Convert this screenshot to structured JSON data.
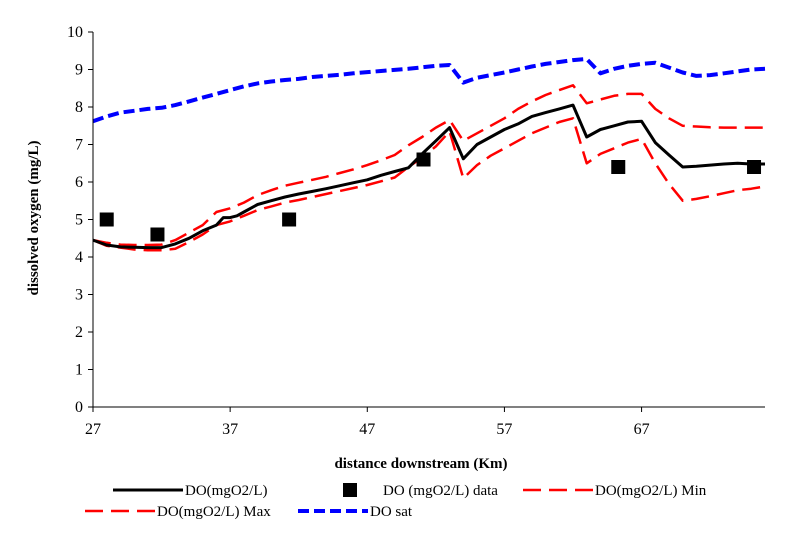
{
  "chart_data": {
    "type": "line",
    "title": "",
    "xlabel": "distance downstream (Km)",
    "ylabel": "dissolved oxygen (mg/L)",
    "xlim": [
      27,
      76
    ],
    "ylim": [
      0,
      10
    ],
    "x_ticks": [
      "27",
      "37",
      "47",
      "57",
      "67"
    ],
    "y_ticks": [
      "0",
      "1",
      "2",
      "3",
      "4",
      "5",
      "6",
      "7",
      "8",
      "9",
      "10"
    ],
    "grid": false,
    "legend_position": "bottom",
    "series": [
      {
        "name": "DO(mgO2/L)",
        "kind": "line",
        "style": "solid",
        "color": "#000000",
        "points": [
          [
            27,
            4.45
          ],
          [
            28,
            4.32
          ],
          [
            29,
            4.27
          ],
          [
            30,
            4.26
          ],
          [
            31,
            4.25
          ],
          [
            32,
            4.25
          ],
          [
            33,
            4.35
          ],
          [
            34,
            4.5
          ],
          [
            35,
            4.7
          ],
          [
            36,
            4.85
          ],
          [
            36.5,
            5.05
          ],
          [
            37,
            5.05
          ],
          [
            37.5,
            5.1
          ],
          [
            38,
            5.2
          ],
          [
            39,
            5.4
          ],
          [
            40,
            5.5
          ],
          [
            41,
            5.6
          ],
          [
            42,
            5.68
          ],
          [
            43,
            5.75
          ],
          [
            44,
            5.82
          ],
          [
            45,
            5.9
          ],
          [
            46,
            5.98
          ],
          [
            47,
            6.06
          ],
          [
            48,
            6.18
          ],
          [
            49,
            6.28
          ],
          [
            50,
            6.38
          ],
          [
            51,
            6.75
          ],
          [
            52,
            7.1
          ],
          [
            53,
            7.45
          ],
          [
            54,
            6.62
          ],
          [
            55,
            7.0
          ],
          [
            56,
            7.2
          ],
          [
            57,
            7.4
          ],
          [
            58,
            7.55
          ],
          [
            59,
            7.75
          ],
          [
            60,
            7.85
          ],
          [
            61,
            7.95
          ],
          [
            62,
            8.05
          ],
          [
            63,
            7.2
          ],
          [
            64,
            7.4
          ],
          [
            65,
            7.5
          ],
          [
            66,
            7.6
          ],
          [
            67,
            7.62
          ],
          [
            68,
            7.05
          ],
          [
            69,
            6.72
          ],
          [
            70,
            6.4
          ],
          [
            71,
            6.42
          ],
          [
            72,
            6.45
          ],
          [
            73,
            6.48
          ],
          [
            74,
            6.5
          ],
          [
            75,
            6.48
          ],
          [
            76,
            6.48
          ]
        ]
      },
      {
        "name": "DO (mgO2/L) data",
        "kind": "markers",
        "color": "#000000",
        "points": [
          [
            28,
            5.0
          ],
          [
            31.7,
            4.6
          ],
          [
            41.3,
            5.0
          ],
          [
            51.1,
            6.6
          ],
          [
            65.3,
            6.4
          ],
          [
            75.2,
            6.4
          ]
        ]
      },
      {
        "name": "DO(mgO2/L) Min",
        "kind": "line",
        "style": "dashed",
        "color": "#ff0000",
        "points": [
          [
            27,
            4.45
          ],
          [
            28,
            4.3
          ],
          [
            29,
            4.25
          ],
          [
            30,
            4.2
          ],
          [
            31,
            4.18
          ],
          [
            32,
            4.18
          ],
          [
            33,
            4.22
          ],
          [
            34,
            4.4
          ],
          [
            35,
            4.6
          ],
          [
            36,
            4.85
          ],
          [
            37,
            4.95
          ],
          [
            38,
            5.1
          ],
          [
            39,
            5.25
          ],
          [
            40,
            5.35
          ],
          [
            41,
            5.45
          ],
          [
            42,
            5.52
          ],
          [
            43,
            5.6
          ],
          [
            44,
            5.68
          ],
          [
            45,
            5.76
          ],
          [
            46,
            5.84
          ],
          [
            47,
            5.92
          ],
          [
            48,
            6.02
          ],
          [
            49,
            6.12
          ],
          [
            50,
            6.4
          ],
          [
            51,
            6.65
          ],
          [
            52,
            6.95
          ],
          [
            53,
            7.35
          ],
          [
            54,
            6.1
          ],
          [
            55,
            6.45
          ],
          [
            56,
            6.7
          ],
          [
            57,
            6.9
          ],
          [
            58,
            7.1
          ],
          [
            59,
            7.3
          ],
          [
            60,
            7.45
          ],
          [
            61,
            7.6
          ],
          [
            62,
            7.7
          ],
          [
            63,
            6.5
          ],
          [
            64,
            6.75
          ],
          [
            65,
            6.9
          ],
          [
            66,
            7.05
          ],
          [
            67,
            7.15
          ],
          [
            68,
            6.5
          ],
          [
            69,
            5.95
          ],
          [
            70,
            5.5
          ],
          [
            71,
            5.55
          ],
          [
            72,
            5.62
          ],
          [
            73,
            5.7
          ],
          [
            74,
            5.78
          ],
          [
            75,
            5.82
          ],
          [
            76,
            5.88
          ]
        ]
      },
      {
        "name": "DO(mgO2/L) Max",
        "kind": "line",
        "style": "dashed",
        "color": "#ff0000",
        "points": [
          [
            27,
            4.45
          ],
          [
            28,
            4.38
          ],
          [
            29,
            4.33
          ],
          [
            30,
            4.32
          ],
          [
            31,
            4.32
          ],
          [
            32,
            4.33
          ],
          [
            33,
            4.45
          ],
          [
            34,
            4.65
          ],
          [
            35,
            4.85
          ],
          [
            36,
            5.2
          ],
          [
            37,
            5.3
          ],
          [
            38,
            5.45
          ],
          [
            39,
            5.65
          ],
          [
            40,
            5.78
          ],
          [
            41,
            5.9
          ],
          [
            42,
            5.98
          ],
          [
            43,
            6.06
          ],
          [
            44,
            6.14
          ],
          [
            45,
            6.24
          ],
          [
            46,
            6.34
          ],
          [
            47,
            6.45
          ],
          [
            48,
            6.58
          ],
          [
            49,
            6.72
          ],
          [
            50,
            6.98
          ],
          [
            51,
            7.2
          ],
          [
            52,
            7.45
          ],
          [
            53,
            7.65
          ],
          [
            54,
            7.1
          ],
          [
            55,
            7.3
          ],
          [
            56,
            7.5
          ],
          [
            57,
            7.7
          ],
          [
            58,
            7.95
          ],
          [
            59,
            8.15
          ],
          [
            60,
            8.32
          ],
          [
            61,
            8.45
          ],
          [
            62,
            8.58
          ],
          [
            63,
            8.1
          ],
          [
            64,
            8.2
          ],
          [
            65,
            8.3
          ],
          [
            66,
            8.35
          ],
          [
            67,
            8.35
          ],
          [
            68,
            7.95
          ],
          [
            69,
            7.7
          ],
          [
            70,
            7.5
          ],
          [
            71,
            7.48
          ],
          [
            72,
            7.46
          ],
          [
            73,
            7.45
          ],
          [
            74,
            7.45
          ],
          [
            75,
            7.45
          ],
          [
            76,
            7.45
          ]
        ]
      },
      {
        "name": "DO sat",
        "kind": "line",
        "style": "dashed",
        "color": "#0000ff",
        "points": [
          [
            27,
            7.62
          ],
          [
            28,
            7.75
          ],
          [
            29,
            7.85
          ],
          [
            30,
            7.9
          ],
          [
            31,
            7.95
          ],
          [
            32,
            7.98
          ],
          [
            33,
            8.05
          ],
          [
            34,
            8.15
          ],
          [
            35,
            8.25
          ],
          [
            36,
            8.35
          ],
          [
            37,
            8.45
          ],
          [
            38,
            8.55
          ],
          [
            39,
            8.63
          ],
          [
            40,
            8.68
          ],
          [
            41,
            8.72
          ],
          [
            42,
            8.75
          ],
          [
            43,
            8.8
          ],
          [
            44,
            8.83
          ],
          [
            45,
            8.86
          ],
          [
            46,
            8.9
          ],
          [
            47,
            8.93
          ],
          [
            48,
            8.96
          ],
          [
            49,
            8.99
          ],
          [
            50,
            9.02
          ],
          [
            51,
            9.06
          ],
          [
            52,
            9.1
          ],
          [
            53,
            9.12
          ],
          [
            54,
            8.65
          ],
          [
            55,
            8.78
          ],
          [
            56,
            8.85
          ],
          [
            57,
            8.92
          ],
          [
            58,
            9.0
          ],
          [
            59,
            9.08
          ],
          [
            60,
            9.15
          ],
          [
            61,
            9.2
          ],
          [
            62,
            9.25
          ],
          [
            63,
            9.28
          ],
          [
            64,
            8.9
          ],
          [
            65,
            9.02
          ],
          [
            66,
            9.1
          ],
          [
            67,
            9.15
          ],
          [
            68,
            9.18
          ],
          [
            69,
            9.05
          ],
          [
            70,
            8.92
          ],
          [
            71,
            8.83
          ],
          [
            72,
            8.85
          ],
          [
            73,
            8.9
          ],
          [
            74,
            8.95
          ],
          [
            75,
            9.0
          ],
          [
            76,
            9.02
          ]
        ]
      }
    ]
  }
}
